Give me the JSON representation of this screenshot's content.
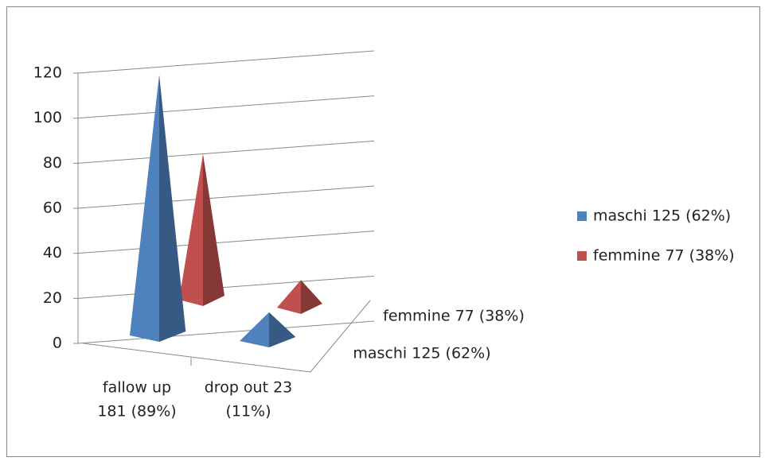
{
  "chart_data": {
    "type": "pyramid3d",
    "categories": [
      [
        "fallow up",
        "181  (89%)"
      ],
      [
        "drop out 23",
        "(11%)"
      ]
    ],
    "series": [
      {
        "name": "maschi 125 (62%)",
        "color": "#4f81bd",
        "values": [
          114,
          11
        ]
      },
      {
        "name": "femmine 77 (38%)",
        "color": "#c0504d",
        "values": [
          66,
          11
        ]
      }
    ],
    "ylim": [
      0,
      120
    ],
    "yticks": [
      0,
      20,
      40,
      60,
      80,
      100,
      120
    ],
    "grid": true,
    "legend": "right"
  }
}
